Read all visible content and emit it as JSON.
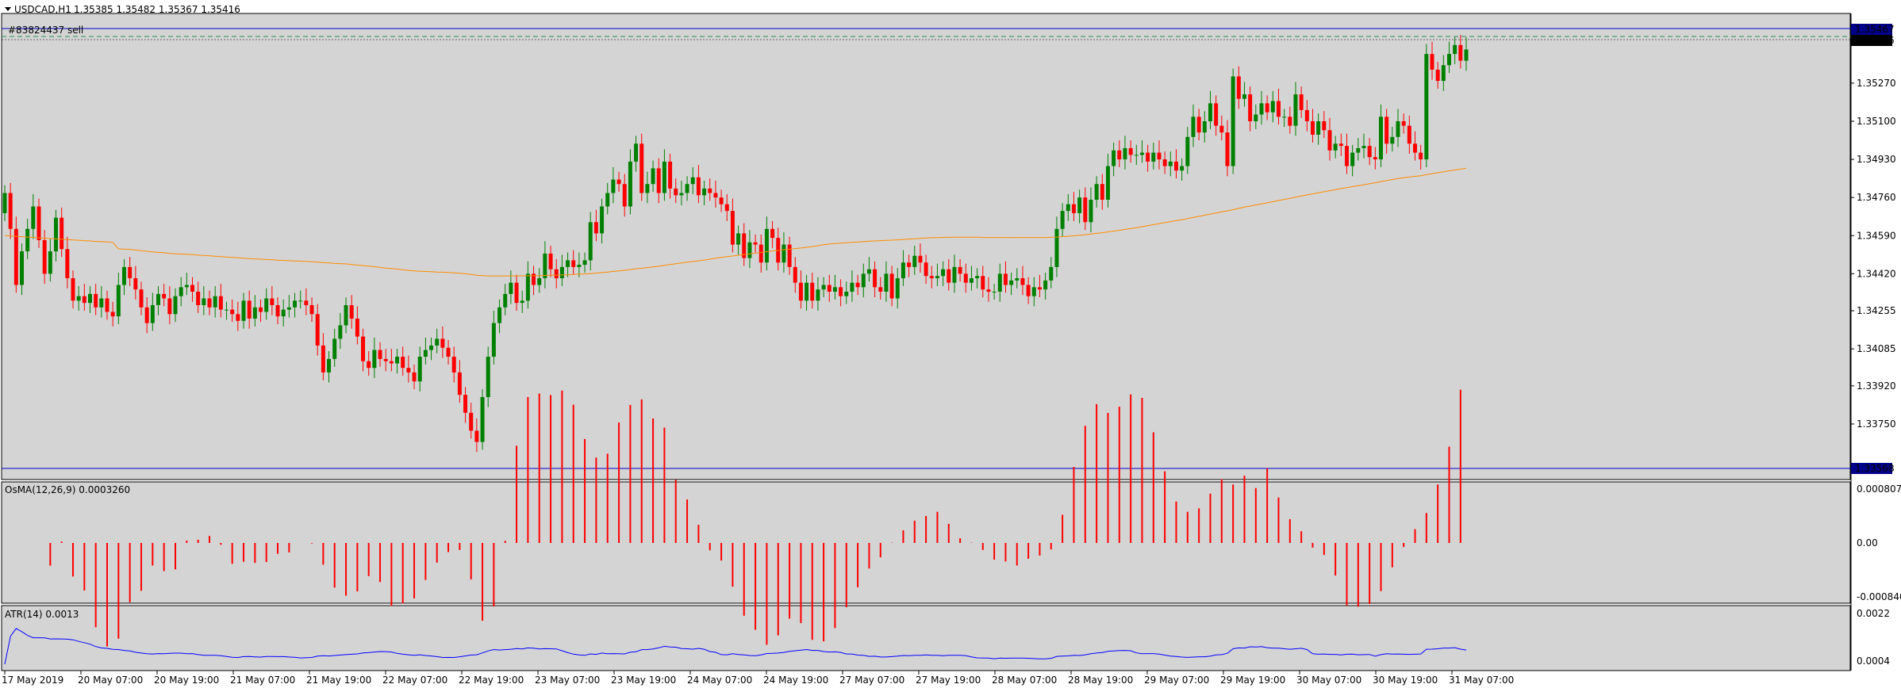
{
  "symbol_title": "USDCAD,H1",
  "ohlc_text": "1.35385 1.35482 1.35367 1.35416",
  "order_label": "#83824437 sell",
  "price_panel": {
    "y_ticks": [
      "1.35270",
      "1.35100",
      "1.34930",
      "1.34760",
      "1.34590",
      "1.34420",
      "1.34255",
      "1.34085",
      "1.33920",
      "1.33750"
    ],
    "y_tick_values": [
      1.3527,
      1.351,
      1.3493,
      1.3476,
      1.3459,
      1.3442,
      1.34255,
      1.34085,
      1.3392,
      1.3375
    ],
    "hline_high": "1.35467",
    "hline_current": "1.35416",
    "hline_low": "1.33568"
  },
  "osma_panel": {
    "label": "OsMA(12,26,9) 0.0003260",
    "ticks": [
      "0.000807",
      "0.00",
      "-0.000840"
    ]
  },
  "atr_panel": {
    "label": "ATR(14) 0.0013",
    "ticks": [
      "0.0022",
      "0.0004"
    ]
  },
  "x_axis_labels": [
    "17 May 2019",
    "20 May 07:00",
    "20 May 19:00",
    "21 May 07:00",
    "21 May 19:00",
    "22 May 07:00",
    "22 May 19:00",
    "23 May 07:00",
    "23 May 19:00",
    "24 May 07:00",
    "24 May 19:00",
    "27 May 07:00",
    "27 May 19:00",
    "28 May 07:00",
    "28 May 19:00",
    "29 May 07:00",
    "29 May 19:00",
    "30 May 07:00",
    "30 May 19:00",
    "31 May 07:00"
  ],
  "colors": {
    "chart_bg": "#d4d4d4",
    "bull_candle": "#008000",
    "bear_candle": "#ff0000",
    "moving_average": "#ff8c00",
    "hline": "#0000cd",
    "osma_bars": "#ff0000",
    "atr_line": "#0000ff",
    "label_bg": "#00008b"
  },
  "chart_data": [
    {
      "type": "candlestick",
      "title": "USDCAD,H1",
      "x_range": [
        "17 May 2019",
        "31 May 07:00"
      ],
      "ylim": [
        1.3352,
        1.3557
      ],
      "series": [
        {
          "name": "USDCAD,H1",
          "closes": [
            1.3478,
            1.3462,
            1.3437,
            1.3452,
            1.3462,
            1.3472,
            1.3457,
            1.3442,
            1.3452,
            1.3467,
            1.3453,
            1.344,
            1.343,
            1.3432,
            1.3429,
            1.3433,
            1.3427,
            1.3431,
            1.3425,
            1.3423,
            1.3437,
            1.3445,
            1.344,
            1.3435,
            1.3427,
            1.342,
            1.3428,
            1.3433,
            1.3431,
            1.3424,
            1.3432,
            1.3436,
            1.3437,
            1.3434,
            1.3428,
            1.3431,
            1.3427,
            1.3432,
            1.3426,
            1.3426,
            1.3424,
            1.3421,
            1.343,
            1.3422,
            1.3427,
            1.3425,
            1.3431,
            1.3428,
            1.3423,
            1.3426,
            1.3427,
            1.343,
            1.343,
            1.3428,
            1.3424,
            1.341,
            1.3398,
            1.3404,
            1.3413,
            1.3419,
            1.3428,
            1.3422,
            1.3414,
            1.3403,
            1.34,
            1.3408,
            1.3404,
            1.3403,
            1.3402,
            1.3405,
            1.34,
            1.3398,
            1.3394,
            1.3405,
            1.3408,
            1.341,
            1.3413,
            1.3409,
            1.3405,
            1.3398,
            1.3388,
            1.338,
            1.3372,
            1.3367,
            1.3387,
            1.3405,
            1.342,
            1.3427,
            1.3433,
            1.3438,
            1.3429,
            1.343,
            1.3442,
            1.3437,
            1.344,
            1.3451,
            1.3444,
            1.344,
            1.3445,
            1.3448,
            1.3445,
            1.3446,
            1.3448,
            1.3465,
            1.346,
            1.3472,
            1.3478,
            1.3484,
            1.3482,
            1.3472,
            1.3492,
            1.35,
            1.3478,
            1.3482,
            1.3489,
            1.3478,
            1.3492,
            1.348,
            1.3477,
            1.3478,
            1.3482,
            1.3485,
            1.3477,
            1.348,
            1.3478,
            1.3476,
            1.3473,
            1.347,
            1.3455,
            1.346,
            1.3449,
            1.3456,
            1.3455,
            1.3447,
            1.3462,
            1.3458,
            1.3447,
            1.3455,
            1.3445,
            1.3438,
            1.343,
            1.3438,
            1.343,
            1.3435,
            1.3437,
            1.3434,
            1.3436,
            1.3432,
            1.3434,
            1.3438,
            1.3436,
            1.3442,
            1.3444,
            1.3436,
            1.3434,
            1.3442,
            1.3431,
            1.344,
            1.3447,
            1.3445,
            1.345,
            1.3447,
            1.3441,
            1.344,
            1.3441,
            1.3444,
            1.3438,
            1.3445,
            1.3442,
            1.3438,
            1.344,
            1.3441,
            1.3435,
            1.3434,
            1.3434,
            1.3442,
            1.3437,
            1.3439,
            1.344,
            1.3437,
            1.3432,
            1.3436,
            1.3435,
            1.3439,
            1.3445,
            1.3462,
            1.347,
            1.3473,
            1.3469,
            1.3476,
            1.3465,
            1.3475,
            1.3482,
            1.3475,
            1.349,
            1.3497,
            1.3493,
            1.3498,
            1.3495,
            1.3495,
            1.3496,
            1.3492,
            1.3496,
            1.3493,
            1.349,
            1.3492,
            1.3488,
            1.349,
            1.3503,
            1.3512,
            1.3505,
            1.351,
            1.3518,
            1.3508,
            1.3505,
            1.349,
            1.353,
            1.352,
            1.3522,
            1.351,
            1.3513,
            1.3518,
            1.3514,
            1.3519,
            1.3512,
            1.3512,
            1.3508,
            1.3522,
            1.3515,
            1.351,
            1.3504,
            1.351,
            1.3506,
            1.3497,
            1.35,
            1.3499,
            1.349,
            1.3496,
            1.3498,
            1.3499,
            1.3494,
            1.3493,
            1.3512,
            1.35,
            1.3503,
            1.351,
            1.3508,
            1.35,
            1.3496,
            1.3493,
            1.354,
            1.3533,
            1.3528,
            1.3535,
            1.354,
            1.3544,
            1.3537,
            1.3542
          ]
        }
      ]
    },
    {
      "type": "bar",
      "title": "OsMA(12,26,9) 0.0003260",
      "ylim": [
        -0.00084,
        0.000807
      ],
      "values": "histogram, values from the bars (see price closes)"
    },
    {
      "type": "line",
      "title": "ATR(14) 0.0013",
      "ylim": [
        0.0004,
        0.0022
      ]
    }
  ]
}
